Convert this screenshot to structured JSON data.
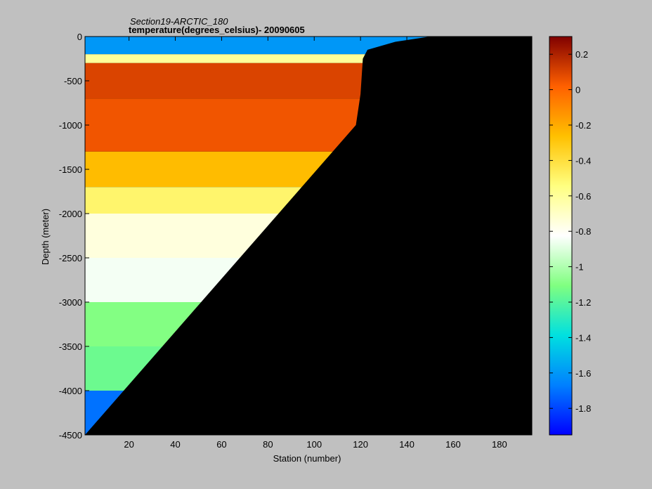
{
  "chart_data": {
    "type": "heatmap",
    "title": "Section19-ARCTIC_180",
    "subtitle": "temperature(degrees_celsius)- 20090605",
    "xlabel": "Station (number)",
    "ylabel": "Depth (meter)",
    "xlim": [
      1,
      194
    ],
    "ylim": [
      -4500,
      0
    ],
    "xticks": [
      20,
      40,
      60,
      80,
      100,
      120,
      140,
      160,
      180
    ],
    "yticks": [
      0,
      -500,
      -1000,
      -1500,
      -2000,
      -2500,
      -3000,
      -3500,
      -4000,
      -4500
    ],
    "colorbar": {
      "range": [
        -1.95,
        0.3
      ],
      "ticks": [
        0.2,
        0,
        -0.2,
        -0.4,
        -0.6,
        -0.8,
        -1,
        -1.2,
        -1.4,
        -1.6,
        -1.8
      ],
      "colormap": "jet"
    },
    "bottom_profile": [
      [
        1,
        -4500
      ],
      [
        118,
        -1000
      ],
      [
        120,
        -650
      ],
      [
        121,
        -250
      ],
      [
        123,
        -150
      ],
      [
        135,
        -60
      ],
      [
        150,
        0
      ],
      [
        194,
        0
      ]
    ],
    "layers": [
      {
        "depth_range": [
          0,
          -200
        ],
        "value": -1.6
      },
      {
        "depth_range": [
          -200,
          -300
        ],
        "value": -0.6
      },
      {
        "depth_range": [
          -300,
          -700
        ],
        "value": 0.1
      },
      {
        "depth_range": [
          -700,
          -1300
        ],
        "value": 0.05
      },
      {
        "depth_range": [
          -1300,
          -1700
        ],
        "value": -0.25
      },
      {
        "depth_range": [
          -1700,
          -2000
        ],
        "value": -0.5
      },
      {
        "depth_range": [
          -2000,
          -2500
        ],
        "value": -0.75
      },
      {
        "depth_range": [
          -2500,
          -3000
        ],
        "value": -0.85
      },
      {
        "depth_range": [
          -3000,
          -3500
        ],
        "value": -1.1
      },
      {
        "depth_range": [
          -3500,
          -4000
        ],
        "value": -1.15
      },
      {
        "depth_range": [
          -4000,
          -4500
        ],
        "value": -1.7
      }
    ],
    "grid": false
  }
}
